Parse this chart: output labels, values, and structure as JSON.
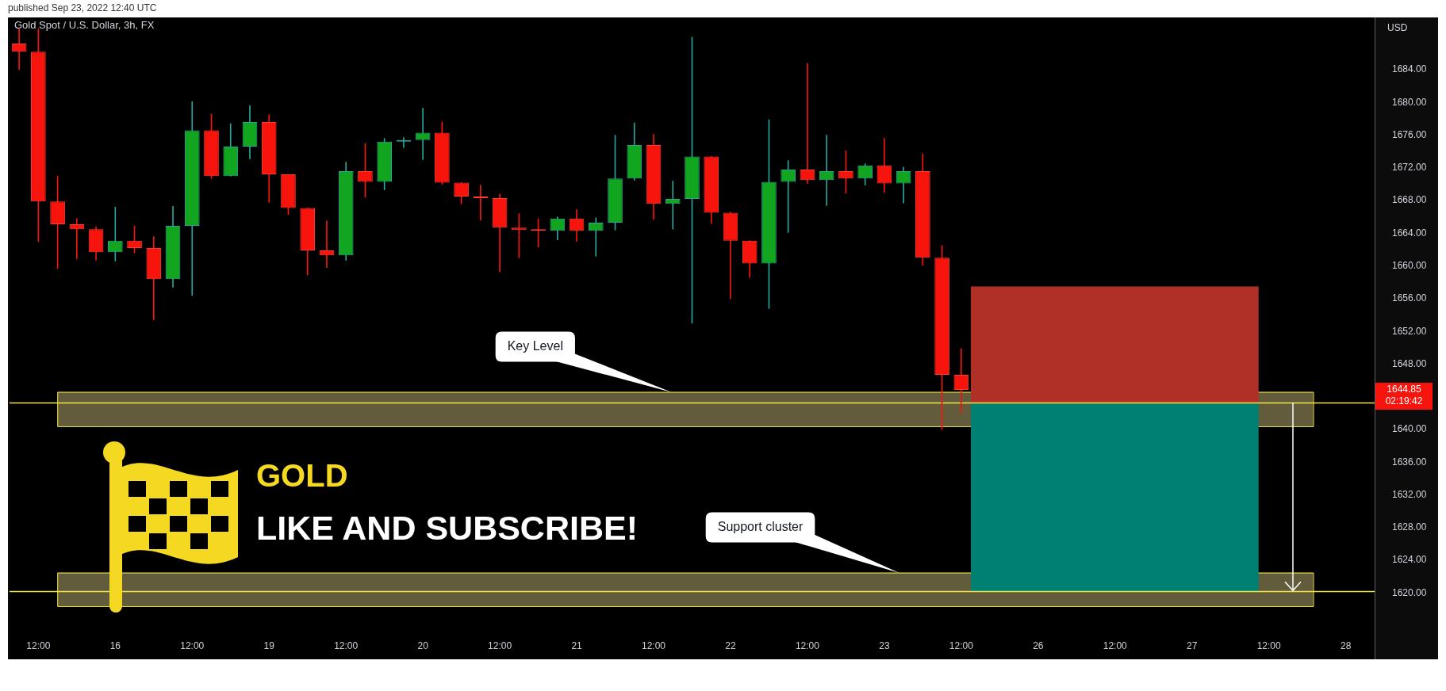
{
  "chart_data": {
    "type": "candlestick",
    "title": "Gold Spot / U.S. Dollar, 3h, FX",
    "ylabel": "USD",
    "categories": [
      null,
      "12:00",
      null,
      null,
      null,
      "16",
      null,
      null,
      null,
      "12:00",
      null,
      null,
      null,
      "19",
      null,
      null,
      null,
      "12:00",
      null,
      null,
      null,
      "20",
      null,
      null,
      null,
      "12:00",
      null,
      null,
      null,
      "21",
      null,
      null,
      null,
      "12:00",
      null,
      null,
      null,
      "22",
      null,
      null,
      null,
      "12:00",
      null,
      null,
      null,
      "23",
      null,
      null,
      null,
      "12:00",
      null,
      null,
      null,
      "26",
      null,
      null,
      null,
      "12:00",
      null,
      null,
      null,
      "27",
      null,
      null,
      null,
      "12:00",
      null,
      null,
      null,
      "28",
      null
    ],
    "ohlc": [
      [
        1687.2,
        1689,
        1684.0,
        1686.2
      ],
      [
        1686.2,
        1689,
        1663.0,
        1667.9
      ],
      [
        1667.9,
        1671.0,
        1659.7,
        1665.1
      ],
      [
        1665.1,
        1665.8,
        1660.9,
        1664.5
      ],
      [
        1664.5,
        1664.8,
        1660.7,
        1661.7
      ],
      [
        1661.7,
        1667.2,
        1660.6,
        1663.1
      ],
      [
        1663.1,
        1664.9,
        1661.6,
        1662.2
      ],
      [
        1662.2,
        1663.6,
        1653.4,
        1658.4
      ],
      [
        1658.4,
        1667.3,
        1657.4,
        1664.9
      ],
      [
        1664.9,
        1680.1,
        1656.4,
        1676.6
      ],
      [
        1676.6,
        1678.6,
        1670.7,
        1671.0
      ],
      [
        1671.0,
        1677.4,
        1671.0,
        1674.6
      ],
      [
        1674.6,
        1679.6,
        1673.1,
        1677.6
      ],
      [
        1677.6,
        1678.5,
        1667.8,
        1671.2
      ],
      [
        1671.2,
        1671.2,
        1666.3,
        1667.1
      ],
      [
        1667.1,
        1667.1,
        1658.9,
        1661.9
      ],
      [
        1661.9,
        1665.5,
        1659.8,
        1661.3
      ],
      [
        1661.3,
        1672.7,
        1660.7,
        1671.6
      ],
      [
        1671.6,
        1675.0,
        1668.4,
        1670.3
      ],
      [
        1670.3,
        1675.6,
        1669.3,
        1675.2
      ],
      [
        1675.2,
        1675.7,
        1674.5,
        1675.4
      ],
      [
        1675.4,
        1679.3,
        1673.0,
        1676.3
      ],
      [
        1676.3,
        1677.6,
        1670.0,
        1670.2
      ],
      [
        1670.2,
        1670.2,
        1667.6,
        1668.5
      ],
      [
        1668.5,
        1669.9,
        1665.6,
        1668.3
      ],
      [
        1668.3,
        1668.8,
        1659.3,
        1664.7
      ],
      [
        1664.7,
        1666.4,
        1661.0,
        1664.4
      ],
      [
        1664.4,
        1665.8,
        1662.3,
        1664.3
      ],
      [
        1664.3,
        1666.0,
        1663.2,
        1665.8
      ],
      [
        1665.8,
        1666.9,
        1663.0,
        1664.3
      ],
      [
        1664.3,
        1665.9,
        1661.2,
        1665.3
      ],
      [
        1665.3,
        1676.0,
        1664.4,
        1670.7
      ],
      [
        1670.7,
        1677.5,
        1670.5,
        1674.8
      ],
      [
        1674.8,
        1676.1,
        1665.7,
        1667.6
      ],
      [
        1667.6,
        1670.4,
        1664.5,
        1668.2
      ],
      [
        1668.2,
        1688.0,
        1653.0,
        1673.4
      ],
      [
        1673.4,
        1673.4,
        1665.2,
        1666.5
      ],
      [
        1666.5,
        1666.6,
        1656.0,
        1663.1
      ],
      [
        1663.1,
        1663.1,
        1658.6,
        1660.3
      ],
      [
        1660.3,
        1677.9,
        1654.8,
        1670.3
      ],
      [
        1670.3,
        1672.9,
        1664.1,
        1671.8
      ],
      [
        1671.8,
        1684.8,
        1670.1,
        1670.5
      ],
      [
        1670.5,
        1676.0,
        1667.4,
        1671.6
      ],
      [
        1671.6,
        1674.1,
        1668.9,
        1670.7
      ],
      [
        1670.7,
        1672.5,
        1669.9,
        1672.3
      ],
      [
        1672.3,
        1675.6,
        1669.0,
        1670.1
      ],
      [
        1670.1,
        1672.1,
        1667.7,
        1671.6
      ],
      [
        1671.6,
        1673.7,
        1660.1,
        1661.0
      ],
      [
        1661.0,
        1662.5,
        1640.0,
        1646.7
      ],
      [
        1646.7,
        1649.9,
        1642.0,
        1644.85
      ],
      null,
      null,
      null,
      null,
      null,
      null,
      null,
      null,
      null,
      null,
      null,
      null,
      null,
      null,
      null,
      null,
      null,
      null,
      null,
      null,
      null
    ],
    "ylim": [
      1611.9,
      1690.4
    ],
    "yticks": [
      {
        "value": 1620,
        "label": "1620.00"
      },
      {
        "value": 1624,
        "label": "1624.00"
      },
      {
        "value": 1628,
        "label": "1628.00"
      },
      {
        "value": 1632,
        "label": "1632.00"
      },
      {
        "value": 1636,
        "label": "1636.00"
      },
      {
        "value": 1640,
        "label": "1640.00"
      },
      {
        "value": 1648,
        "label": "1648.00"
      },
      {
        "value": 1652,
        "label": "1652.00"
      },
      {
        "value": 1656,
        "label": "1656.00"
      },
      {
        "value": 1660,
        "label": "1660.00"
      },
      {
        "value": 1664,
        "label": "1664.00"
      },
      {
        "value": 1668,
        "label": "1668.00"
      },
      {
        "value": 1672,
        "label": "1672.00"
      },
      {
        "value": 1676,
        "label": "1676.00"
      },
      {
        "value": 1680,
        "label": "1680.00"
      },
      {
        "value": 1684,
        "label": "1684.00"
      }
    ],
    "bands": [
      {
        "axis": "y",
        "from": 1640.4,
        "to": 1644.6,
        "label": "Key Level",
        "color": "#625c3c"
      },
      {
        "axis": "y",
        "from": 1618.4,
        "to": 1622.5,
        "label": "Support cluster",
        "color": "#625c3c"
      },
      {
        "axis": "y",
        "from": 1643.3,
        "to": 1657.5,
        "color": "#b03028"
      },
      {
        "axis": "y",
        "from": 1620.2,
        "to": 1643.3,
        "color": "#008072"
      }
    ],
    "ref_lines": [
      {
        "axis": "y",
        "value": 1643.3,
        "color": "#f5e642"
      },
      {
        "axis": "y",
        "value": 1620.2,
        "color": "#f5e642"
      }
    ],
    "annotations": [
      "published Sep 23, 2022 12:40 UTC",
      "1644.85",
      "02:19:42",
      "GOLD",
      "LIKE AND SUBSCRIBE!"
    ],
    "grid": false,
    "legend": false
  }
}
